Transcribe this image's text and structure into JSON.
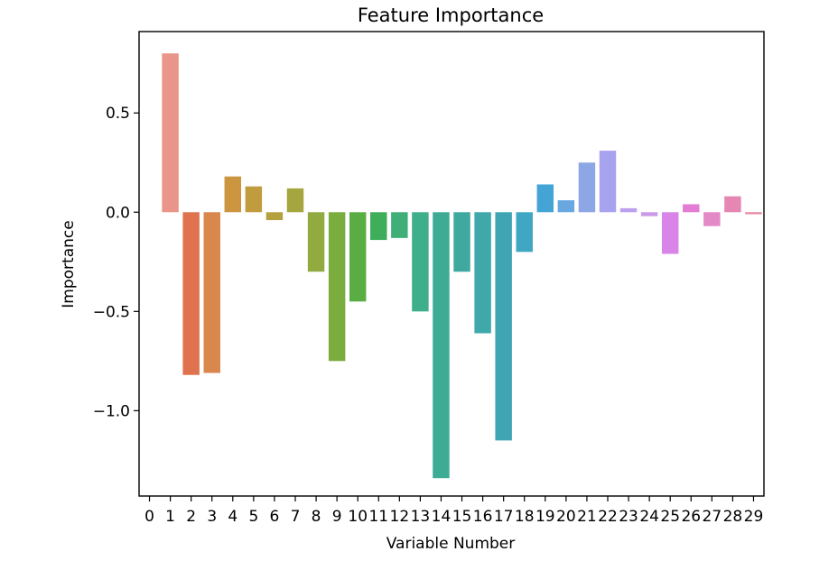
{
  "chart_data": {
    "type": "bar",
    "title": "Feature Importance",
    "xlabel": "Variable Number",
    "ylabel": "Importance",
    "ylim": [
      -1.43,
      0.91
    ],
    "yticks": [
      0.5,
      0.0,
      -0.5,
      -1.0
    ],
    "ytick_labels": [
      "0.5",
      "0.0",
      "−0.5",
      "−1.0"
    ],
    "grid": false,
    "legend": "none",
    "categories": [
      "0",
      "1",
      "2",
      "3",
      "4",
      "5",
      "6",
      "7",
      "8",
      "9",
      "10",
      "11",
      "12",
      "13",
      "14",
      "15",
      "16",
      "17",
      "18",
      "19",
      "20",
      "21",
      "22",
      "23",
      "24",
      "25",
      "26",
      "27",
      "28",
      "29"
    ],
    "values": [
      0.0,
      0.8,
      -0.82,
      -0.81,
      0.18,
      0.13,
      -0.04,
      0.12,
      -0.3,
      -0.75,
      -0.45,
      -0.14,
      -0.13,
      -0.5,
      -1.34,
      -0.3,
      -0.61,
      -1.15,
      -0.2,
      0.14,
      0.06,
      0.25,
      0.31,
      0.02,
      -0.02,
      -0.21,
      0.04,
      -0.07,
      0.08,
      -0.01
    ],
    "colors": [
      "#e8706a",
      "#e99589",
      "#e0734f",
      "#d9874d",
      "#cc9540",
      "#c19c3f",
      "#b3a03f",
      "#a5a63f",
      "#92ab41",
      "#7aac3e",
      "#5aad42",
      "#3fae5a",
      "#3faf77",
      "#3fae8a",
      "#3eab95",
      "#3fa9a0",
      "#3fa8aa",
      "#3fa5b3",
      "#3fa7c3",
      "#45a4d6",
      "#68a7e0",
      "#8da6e6",
      "#a8a3ef",
      "#bca0ee",
      "#ca9ae8",
      "#d884e9",
      "#e27dd3",
      "#e389c6",
      "#e586b3",
      "#e8839f"
    ]
  }
}
